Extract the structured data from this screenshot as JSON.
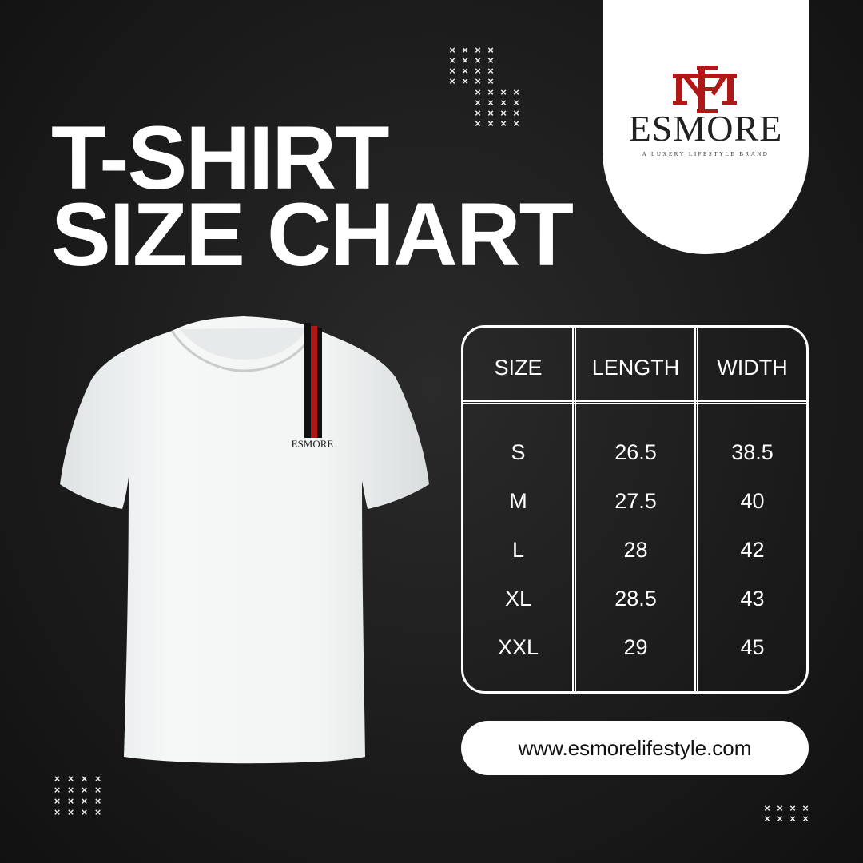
{
  "title": {
    "line1": "T-SHIRT",
    "line2": "SIZE CHART"
  },
  "brand": {
    "monogram": "EM",
    "name": "ESMORE",
    "tagline": "A LUXERY LIFESTYLE BRAND",
    "shirt_print": "ESMORE",
    "accent_color": "#b01818"
  },
  "table": {
    "headers": [
      "SIZE",
      "LENGTH",
      "WIDTH"
    ],
    "rows": [
      {
        "size": "S",
        "length": "26.5",
        "width": "38.5"
      },
      {
        "size": "M",
        "length": "27.5",
        "width": "40"
      },
      {
        "size": "L",
        "length": "28",
        "width": "42"
      },
      {
        "size": "XL",
        "length": "28.5",
        "width": "43"
      },
      {
        "size": "XXL",
        "length": "29",
        "width": "45"
      }
    ]
  },
  "website": "www.esmorelifestyle.com",
  "decor": {
    "pattern_glyph": "×"
  }
}
